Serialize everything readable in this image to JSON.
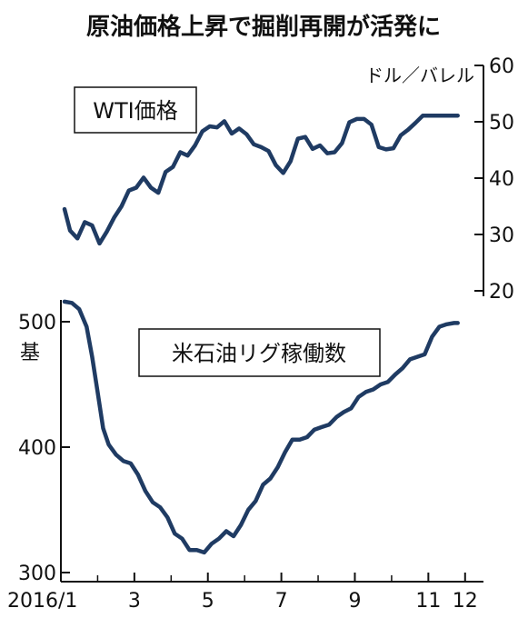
{
  "title": "原油価格上昇で掘削再開が活発に",
  "colors": {
    "line": "#1f3b63",
    "axis": "#111111",
    "frame": "#111111",
    "text": "#111111"
  },
  "x_axis": {
    "ticks": [
      "2016/1",
      "3",
      "5",
      "7",
      "9",
      "11",
      "12"
    ]
  },
  "chart_data": [
    {
      "type": "line",
      "label": "WTI価格",
      "unit": "ドル／バレル",
      "y_axis_side": "right",
      "ylim": [
        20,
        60
      ],
      "y_ticks": [
        "20",
        "30",
        "40",
        "50",
        "60"
      ],
      "x_range": [
        1,
        12.5
      ],
      "series": [
        {
          "x": [
            1.1,
            1.25,
            1.45,
            1.65,
            1.85,
            2.05,
            2.25,
            2.45,
            2.65,
            2.85,
            3.05,
            3.25,
            3.45,
            3.65,
            3.85,
            4.05,
            4.25,
            4.45,
            4.65,
            4.85,
            5.05,
            5.25,
            5.45,
            5.65,
            5.85,
            6.05,
            6.25,
            6.45,
            6.65,
            6.85,
            7.05,
            7.25,
            7.45,
            7.65,
            7.85,
            8.05,
            8.25,
            8.45,
            8.65,
            8.85,
            9.05,
            9.25,
            9.45,
            9.65,
            9.85,
            10.05,
            10.25,
            10.45,
            10.65,
            10.85,
            11.05,
            11.25,
            11.45,
            11.65,
            11.8
          ],
          "y": [
            34.5,
            30.7,
            29.3,
            32.2,
            31.6,
            28.4,
            30.5,
            33,
            35,
            37.8,
            38.3,
            40.1,
            38.3,
            37.4,
            41.1,
            42,
            44.6,
            44,
            45.8,
            48.3,
            49.2,
            49,
            50.1,
            47.9,
            48.8,
            47.8,
            46,
            45.5,
            44.8,
            42.3,
            40.9,
            43,
            47,
            47.3,
            45.2,
            45.8,
            44.4,
            44.6,
            46.2,
            49.9,
            50.5,
            50.5,
            49.5,
            45.5,
            45.1,
            45.3,
            47.6,
            48.6,
            49.8,
            51.1,
            51.1,
            51.1,
            51.1,
            51.1,
            51.1
          ]
        }
      ]
    },
    {
      "type": "line",
      "label": "米石油リグ稼働数",
      "unit": "基",
      "y_axis_side": "left",
      "ylim": [
        300,
        500
      ],
      "y_ticks": [
        "300",
        "400",
        "500"
      ],
      "x_range": [
        1,
        12.5
      ],
      "series": [
        {
          "x": [
            1.1,
            1.3,
            1.5,
            1.7,
            1.85,
            2.0,
            2.15,
            2.3,
            2.5,
            2.7,
            2.9,
            3.1,
            3.3,
            3.5,
            3.7,
            3.9,
            4.1,
            4.3,
            4.5,
            4.7,
            4.9,
            5.1,
            5.3,
            5.5,
            5.7,
            5.9,
            6.1,
            6.3,
            6.5,
            6.7,
            6.9,
            7.1,
            7.3,
            7.5,
            7.7,
            7.9,
            8.1,
            8.3,
            8.5,
            8.7,
            8.9,
            9.1,
            9.3,
            9.5,
            9.7,
            9.9,
            10.1,
            10.3,
            10.5,
            10.7,
            10.9,
            11.1,
            11.3,
            11.5,
            11.7,
            11.8
          ],
          "y": [
            516,
            515,
            510,
            496,
            472,
            444,
            415,
            402,
            394,
            389,
            387,
            378,
            365,
            356,
            352,
            344,
            331,
            327,
            318,
            318,
            316,
            323,
            327,
            333,
            329,
            338,
            350,
            357,
            370,
            375,
            384,
            396,
            406,
            406,
            408,
            414,
            416,
            418,
            424,
            428,
            431,
            440,
            444,
            446,
            450,
            452,
            458,
            463,
            470,
            472,
            474,
            488,
            496,
            498,
            499,
            499
          ]
        }
      ]
    }
  ]
}
